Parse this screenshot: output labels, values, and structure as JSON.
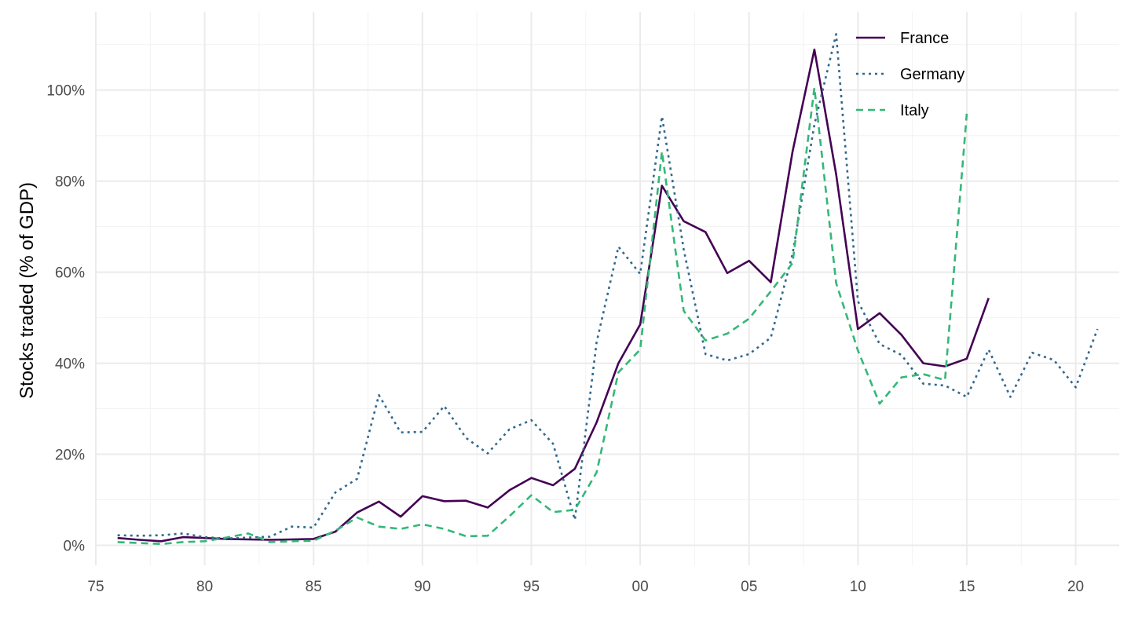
{
  "chart_data": {
    "type": "line",
    "xlabel": "",
    "ylabel": "Stocks traded (% of GDP)",
    "xlim": [
      1975,
      2022
    ],
    "ylim": [
      0,
      110
    ],
    "x_ticks": [
      1975,
      1980,
      1985,
      1990,
      1995,
      2000,
      2005,
      2010,
      2015,
      2020
    ],
    "x_tick_labels": [
      "75",
      "80",
      "85",
      "90",
      "95",
      "00",
      "05",
      "10",
      "15",
      "20"
    ],
    "y_ticks": [
      0,
      20,
      40,
      60,
      80,
      100
    ],
    "y_tick_labels": [
      "0%",
      "20%",
      "40%",
      "60%",
      "80%",
      "100%"
    ],
    "grid": true,
    "legend_position": "top-right",
    "series": [
      {
        "name": "France",
        "color": "#440154",
        "dash": "solid",
        "x": [
          1976,
          1977,
          1978,
          1979,
          1980,
          1981,
          1982,
          1983,
          1984,
          1985,
          1986,
          1987,
          1988,
          1989,
          1990,
          1991,
          1992,
          1993,
          1994,
          1995,
          1996,
          1997,
          1998,
          1999,
          2000,
          2001,
          2002,
          2003,
          2004,
          2005,
          2006,
          2007,
          2008,
          2009,
          2010,
          2011,
          2012,
          2013,
          2014,
          2015,
          2016
        ],
        "values": [
          1.6,
          1.2,
          0.9,
          1.8,
          1.6,
          1.4,
          1.3,
          1.2,
          1.3,
          1.4,
          3.0,
          7.2,
          9.6,
          6.3,
          10.8,
          9.7,
          9.8,
          8.3,
          12.1,
          14.8,
          13.2,
          16.8,
          27.0,
          40.0,
          48.5,
          79.0,
          71.2,
          68.8,
          59.8,
          62.5,
          57.8,
          86.5,
          108.9,
          81.5,
          47.5,
          51.0,
          46.2,
          40.0,
          39.3,
          41.0,
          54.3
        ]
      },
      {
        "name": "Germany",
        "color": "#31688e",
        "dash": "dotted",
        "x": [
          1976,
          1977,
          1978,
          1979,
          1980,
          1981,
          1982,
          1983,
          1984,
          1985,
          1986,
          1987,
          1988,
          1989,
          1990,
          1991,
          1992,
          1993,
          1994,
          1995,
          1996,
          1997,
          1998,
          1999,
          2000,
          2001,
          2002,
          2003,
          2004,
          2005,
          2006,
          2007,
          2008,
          2009,
          2010,
          2011,
          2012,
          2013,
          2014,
          2015,
          2016,
          2017,
          2018,
          2019,
          2020,
          2021
        ],
        "values": [
          2.2,
          2.1,
          2.2,
          2.6,
          1.8,
          1.5,
          1.7,
          1.9,
          4.1,
          3.9,
          11.6,
          14.6,
          33.0,
          24.8,
          24.9,
          30.6,
          23.6,
          20.2,
          25.5,
          27.5,
          22.3,
          5.6,
          44.6,
          65.6,
          59.6,
          94.2,
          65.0,
          42.0,
          40.6,
          42.0,
          45.6,
          64.0,
          92.4,
          112.3,
          53.6,
          44.2,
          41.8,
          35.5,
          35.1,
          32.6,
          43.0,
          32.6,
          42.3,
          40.7,
          34.7,
          47.5
        ]
      },
      {
        "name": "Italy",
        "color": "#35b779",
        "dash": "dashed",
        "x": [
          1976,
          1977,
          1978,
          1979,
          1980,
          1981,
          1982,
          1983,
          1984,
          1985,
          1986,
          1987,
          1988,
          1989,
          1990,
          1991,
          1992,
          1993,
          1994,
          1995,
          1996,
          1997,
          1998,
          1999,
          2000,
          2001,
          2002,
          2003,
          2004,
          2005,
          2006,
          2007,
          2008,
          2009,
          2010,
          2011,
          2012,
          2013,
          2014,
          2015
        ],
        "values": [
          0.7,
          0.5,
          0.3,
          0.7,
          0.9,
          1.7,
          2.6,
          0.7,
          0.9,
          1.0,
          3.2,
          6.1,
          4.1,
          3.6,
          4.6,
          3.6,
          2.0,
          2.1,
          6.4,
          11.0,
          7.3,
          7.8,
          16.0,
          38.0,
          43.0,
          86.5,
          51.5,
          45.0,
          46.5,
          49.8,
          55.8,
          62.0,
          100.5,
          57.6,
          42.8,
          31.1,
          36.9,
          37.6,
          36.3,
          94.8
        ]
      }
    ]
  }
}
